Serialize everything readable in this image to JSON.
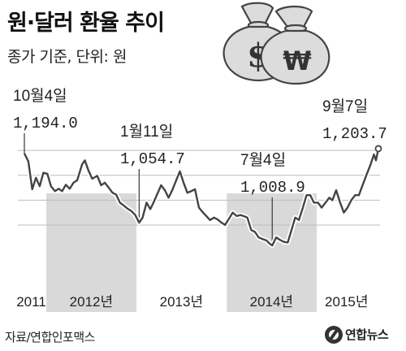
{
  "title": "원·달러 환율 추이",
  "subtitle": "종가 기준, 단위: 원",
  "source": "자료/연합인포맥스",
  "logo_text": "연합뉴스",
  "currency_symbols": {
    "dollar": "$",
    "won": "₩"
  },
  "colors": {
    "line": "#444444",
    "shade": "#d9d9d9",
    "grid": "#bdbdbd",
    "bag": "#dcdcdc",
    "bag_stroke": "#444444"
  },
  "chart_data": {
    "type": "line",
    "title": "원·달러 환율 추이",
    "xlabel": "",
    "ylabel": "",
    "unit": "원",
    "x_range": [
      "2011-10-04",
      "2015-09-07"
    ],
    "ylim": [
      960,
      1215
    ],
    "grid": true,
    "gridlines": [
      1200,
      1150,
      1100,
      1050
    ],
    "year_labels": [
      {
        "label": "2011",
        "date": "2011-11-01",
        "shaded": false
      },
      {
        "label": "2012년",
        "date": "2012-07-01",
        "shaded": true
      },
      {
        "label": "2013년",
        "date": "2013-07-01",
        "shaded": false
      },
      {
        "label": "2014년",
        "date": "2014-07-01",
        "shaded": true
      },
      {
        "label": "2015년",
        "date": "2015-05-01",
        "shaded": false
      }
    ],
    "shaded_periods": [
      {
        "start": "2012-01-01",
        "end": "2012-12-31"
      },
      {
        "start": "2014-01-01",
        "end": "2014-12-31"
      }
    ],
    "annotations": [
      {
        "date": "2011-10-04",
        "label": "10월4일",
        "value_text": "1,194.0",
        "value": 1194.0
      },
      {
        "date": "2013-01-11",
        "label": "1월11일",
        "value_text": "1,054.7",
        "value": 1054.7
      },
      {
        "date": "2014-07-04",
        "label": "7월4일",
        "value_text": "1,008.9",
        "value": 1008.9
      },
      {
        "date": "2015-09-07",
        "label": "9월7일",
        "value_text": "1,203.7",
        "value": 1203.7
      }
    ],
    "series": [
      {
        "points": [
          [
            "2011-10-04",
            1194.0
          ],
          [
            "2011-10-20",
            1178
          ],
          [
            "2011-11-05",
            1122
          ],
          [
            "2011-11-20",
            1145
          ],
          [
            "2011-12-05",
            1128
          ],
          [
            "2011-12-20",
            1155
          ],
          [
            "2012-01-05",
            1153
          ],
          [
            "2012-01-20",
            1128
          ],
          [
            "2012-02-05",
            1118
          ],
          [
            "2012-02-20",
            1123
          ],
          [
            "2012-03-05",
            1118
          ],
          [
            "2012-03-20",
            1131
          ],
          [
            "2012-04-05",
            1123
          ],
          [
            "2012-04-20",
            1135
          ],
          [
            "2012-05-05",
            1140
          ],
          [
            "2012-05-25",
            1172
          ],
          [
            "2012-06-05",
            1180
          ],
          [
            "2012-06-20",
            1159
          ],
          [
            "2012-07-05",
            1143
          ],
          [
            "2012-07-25",
            1149
          ],
          [
            "2012-08-10",
            1130
          ],
          [
            "2012-08-25",
            1135
          ],
          [
            "2012-09-10",
            1125
          ],
          [
            "2012-09-25",
            1115
          ],
          [
            "2012-10-10",
            1111
          ],
          [
            "2012-10-25",
            1095
          ],
          [
            "2012-11-10",
            1089
          ],
          [
            "2012-11-25",
            1083
          ],
          [
            "2012-12-10",
            1078
          ],
          [
            "2012-12-25",
            1071
          ],
          [
            "2013-01-11",
            1054.7
          ],
          [
            "2013-01-25",
            1065
          ],
          [
            "2013-02-10",
            1095
          ],
          [
            "2013-02-25",
            1082
          ],
          [
            "2013-03-10",
            1095
          ],
          [
            "2013-03-25",
            1112
          ],
          [
            "2013-04-10",
            1130
          ],
          [
            "2013-04-25",
            1120
          ],
          [
            "2013-05-10",
            1105
          ],
          [
            "2013-05-25",
            1120
          ],
          [
            "2013-06-10",
            1140
          ],
          [
            "2013-06-25",
            1158
          ],
          [
            "2013-07-10",
            1135
          ],
          [
            "2013-07-25",
            1115
          ],
          [
            "2013-08-10",
            1118
          ],
          [
            "2013-08-25",
            1122
          ],
          [
            "2013-09-10",
            1085
          ],
          [
            "2013-09-25",
            1076
          ],
          [
            "2013-10-10",
            1068
          ],
          [
            "2013-10-25",
            1060
          ],
          [
            "2013-11-10",
            1065
          ],
          [
            "2013-11-25",
            1061
          ],
          [
            "2013-12-10",
            1055
          ],
          [
            "2013-12-25",
            1050
          ],
          [
            "2014-01-10",
            1063
          ],
          [
            "2014-01-25",
            1075
          ],
          [
            "2014-02-10",
            1068
          ],
          [
            "2014-02-25",
            1070
          ],
          [
            "2014-03-10",
            1068
          ],
          [
            "2014-03-25",
            1065
          ],
          [
            "2014-04-10",
            1040
          ],
          [
            "2014-04-25",
            1036
          ],
          [
            "2014-05-10",
            1025
          ],
          [
            "2014-05-25",
            1022
          ],
          [
            "2014-06-10",
            1019
          ],
          [
            "2014-06-25",
            1012
          ],
          [
            "2014-07-04",
            1008.9
          ],
          [
            "2014-07-20",
            1025
          ],
          [
            "2014-08-05",
            1020
          ],
          [
            "2014-08-20",
            1016
          ],
          [
            "2014-09-05",
            1015
          ],
          [
            "2014-09-20",
            1040
          ],
          [
            "2014-10-05",
            1065
          ],
          [
            "2014-10-20",
            1060
          ],
          [
            "2014-11-05",
            1085
          ],
          [
            "2014-11-20",
            1110
          ],
          [
            "2014-12-05",
            1110
          ],
          [
            "2014-12-20",
            1095
          ],
          [
            "2015-01-05",
            1095
          ],
          [
            "2015-01-20",
            1085
          ],
          [
            "2015-02-05",
            1095
          ],
          [
            "2015-02-20",
            1105
          ],
          [
            "2015-03-05",
            1100
          ],
          [
            "2015-03-20",
            1120
          ],
          [
            "2015-04-05",
            1095
          ],
          [
            "2015-04-20",
            1075
          ],
          [
            "2015-05-05",
            1085
          ],
          [
            "2015-05-20",
            1100
          ],
          [
            "2015-06-05",
            1110
          ],
          [
            "2015-06-20",
            1110
          ],
          [
            "2015-07-05",
            1130
          ],
          [
            "2015-07-20",
            1150
          ],
          [
            "2015-08-05",
            1170
          ],
          [
            "2015-08-20",
            1192
          ],
          [
            "2015-08-28",
            1180
          ],
          [
            "2015-09-07",
            1203.7
          ]
        ]
      }
    ]
  }
}
